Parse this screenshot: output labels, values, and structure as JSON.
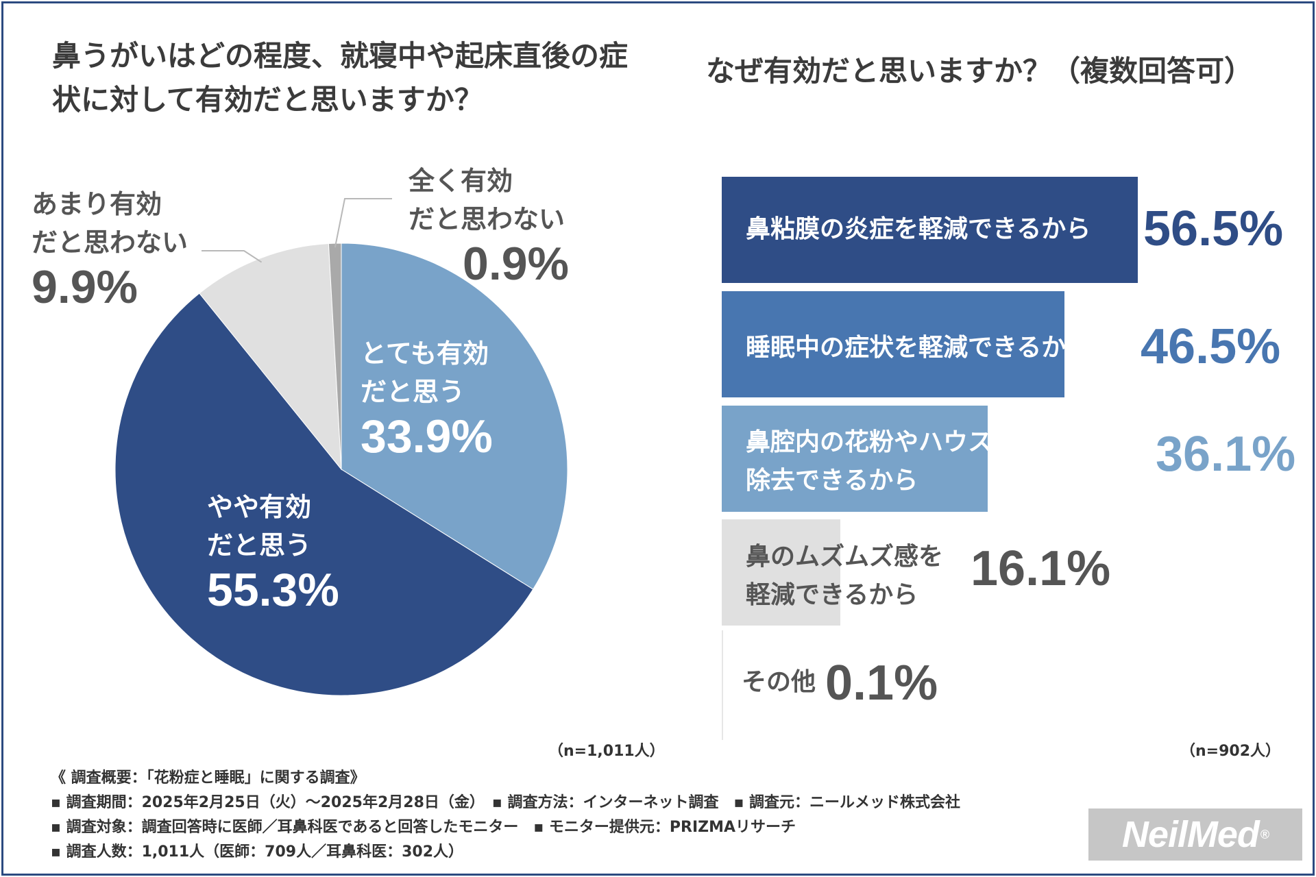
{
  "left_title": "鼻うがいはどの程度、就寝中や起床直後の症状に対して有効だと思いますか？",
  "right_title": "なぜ有効だと思いますか？（複数回答可）",
  "left_n": "（n=1,011人）",
  "right_n": "（n=902人）",
  "colors": {
    "dark_navy": "#2f4d86",
    "mid_blue": "#4876b0",
    "light_blue": "#79a3c9",
    "light_gray": "#e0e0e0",
    "dark_gray": "#a9a9a9"
  },
  "chart_data": [
    {
      "type": "pie",
      "title": "鼻うがいはどの程度、就寝中や起床直後の症状に対して有効だと思いますか？",
      "n": "（n=1,011人）",
      "slices": [
        {
          "label": "とても有効だと思う",
          "label_display": "とても有効\nだと思う",
          "value": 33.9,
          "value_text": "33.9%",
          "color": "#79a3c9"
        },
        {
          "label": "やや有効だと思う",
          "label_display": "やや有効\nだと思う",
          "value": 55.3,
          "value_text": "55.3%",
          "color": "#2f4d86"
        },
        {
          "label": "あまり有効だと思わない",
          "label_display": "あまり有効\nだと思わない",
          "value": 9.9,
          "value_text": "9.9%",
          "color": "#e0e0e0"
        },
        {
          "label": "全く有効だと思わない",
          "label_display": "全く有効\nだと思わない",
          "value": 0.9,
          "value_text": "0.9%",
          "color": "#a9a9a9"
        }
      ]
    },
    {
      "type": "bar",
      "orientation": "horizontal",
      "title": "なぜ有効だと思いますか？（複数回答可）",
      "n": "（n=902人）",
      "xlim": [
        0,
        100
      ],
      "categories": [
        "鼻粘膜の炎症を軽減できるから",
        "睡眠中の症状を軽減できるから",
        "鼻腔内の花粉やハウスダストを\n除去できるから",
        "鼻のムズムズ感を\n軽減できるから",
        "その他"
      ],
      "values": [
        56.5,
        46.5,
        36.1,
        16.1,
        0.1
      ],
      "value_texts": [
        "56.5%",
        "46.5%",
        "36.1%",
        "16.1%",
        "0.1%"
      ],
      "colors": [
        "#2f4d86",
        "#4876b0",
        "#79a3c9",
        "#e0e0e0",
        "#e0e0e0"
      ]
    }
  ],
  "footer": {
    "overview": "《 調査概要：「花粉症と睡眠」に関する調査》",
    "line1": "▪ 調査期間：2025年2月25日（火）〜2025年2月28日（金）　▪ 調査方法：インターネット調査　▪ 調査元：ニールメッド株式会社",
    "line2": "▪ 調査対象：調査回答時に医師／耳鼻科医であると回答したモニター　▪ モニター提供元：PRIZMAリサーチ",
    "line3": "▪ 調査人数：1,011人（医師：709人／耳鼻科医：302人）"
  },
  "logo": {
    "text": "NeilMed",
    "mark": "®"
  }
}
